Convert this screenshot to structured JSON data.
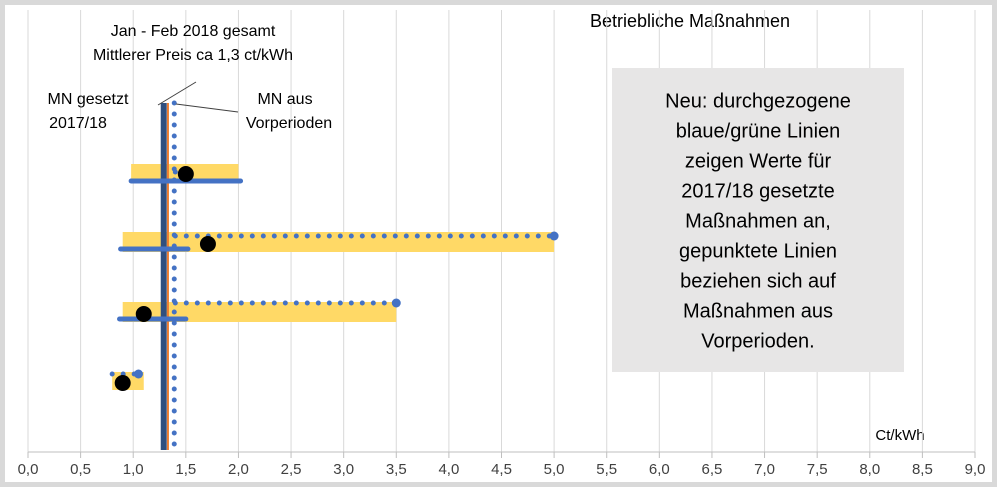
{
  "chart_data": {
    "type": "range",
    "title": "Betriebliche Maßnahmen",
    "xlabel": "Ct/kWh",
    "xlim": [
      0,
      9
    ],
    "xticks": [
      {
        "value": 0,
        "label": "0,0"
      },
      {
        "value": 0.5,
        "label": "0,5"
      },
      {
        "value": 1,
        "label": "1,0"
      },
      {
        "value": 1.5,
        "label": "1,5"
      },
      {
        "value": 2,
        "label": "2,0"
      },
      {
        "value": 2.5,
        "label": "2,5"
      },
      {
        "value": 3,
        "label": "3,0"
      },
      {
        "value": 3.5,
        "label": "3,5"
      },
      {
        "value": 4,
        "label": "4,0"
      },
      {
        "value": 4.5,
        "label": "4,5"
      },
      {
        "value": 5,
        "label": "5,0"
      },
      {
        "value": 5.5,
        "label": "5,5"
      },
      {
        "value": 6,
        "label": "6,0"
      },
      {
        "value": 6.5,
        "label": "6,5"
      },
      {
        "value": 7,
        "label": "7,0"
      },
      {
        "value": 7.5,
        "label": "7,5"
      },
      {
        "value": 8,
        "label": "8,0"
      },
      {
        "value": 8.5,
        "label": "8,5"
      },
      {
        "value": 9,
        "label": "9,0"
      }
    ],
    "grid": true,
    "range_color": "#ffd966",
    "point_color": "#000000",
    "line_color": "#4472c4",
    "ranges": [
      [
        0.98,
        2.0
      ],
      [
        0.9,
        5.0
      ],
      [
        0.9,
        3.5
      ],
      [
        0.8,
        1.1
      ]
    ],
    "points": [
      1.5,
      1.71,
      1.1,
      0.9
    ],
    "solid_lines": [
      [
        0.98,
        2.02
      ],
      [
        0.88,
        1.52
      ],
      [
        0.87,
        1.5
      ],
      null
    ],
    "dotted_lines": [
      [
        1.4,
        1.5
      ],
      [
        1.4,
        5.0
      ],
      [
        1.4,
        3.5
      ],
      [
        0.8,
        1.05
      ]
    ],
    "vlines": [
      {
        "value": 1.29,
        "color": "#2f4f7f",
        "style": "solid"
      },
      {
        "value": 1.33,
        "color": "#ed7d31",
        "style": "thin"
      },
      {
        "value": 1.39,
        "color": "#4472c4",
        "style": "dotted"
      }
    ],
    "annotations": [
      "Jan - Feb 2018 gesamt",
      "Mittlerer Preis ca 1,3 ct/kWh",
      "MN gesetzt",
      "2017/18",
      "MN aus",
      "Vorperioden"
    ],
    "note": [
      "Neu: durchgezogene",
      "blaue/grüne Linien",
      "zeigen Werte für",
      "2017/18 gesetzte",
      "Maßnahmen an,",
      "gepunktete Linien",
      "beziehen sich auf",
      "Maßnahmen aus",
      "Vorperioden."
    ]
  }
}
